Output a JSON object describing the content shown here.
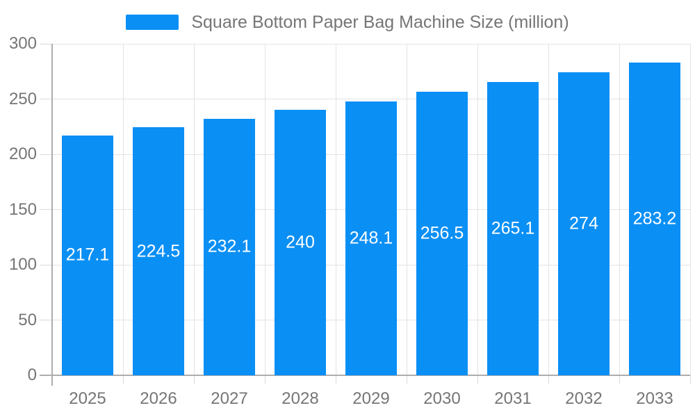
{
  "legend": {
    "label": "Square Bottom Paper Bag Machine Size (million)"
  },
  "chart_data": {
    "type": "bar",
    "title": "Square Bottom Paper Bag Machine Size (million)",
    "categories": [
      "2025",
      "2026",
      "2027",
      "2028",
      "2029",
      "2030",
      "2031",
      "2032",
      "2033"
    ],
    "values": [
      217.1,
      224.5,
      232.1,
      240,
      248.1,
      256.5,
      265.1,
      274,
      283.2
    ],
    "series": [
      {
        "name": "Square Bottom Paper Bag Machine Size (million)",
        "values": [
          217.1,
          224.5,
          232.1,
          240,
          248.1,
          256.5,
          265.1,
          274,
          283.2
        ]
      }
    ],
    "xlabel": "",
    "ylabel": "",
    "ylim": [
      0,
      300
    ],
    "yticks": [
      0,
      50,
      100,
      150,
      200,
      250,
      300
    ],
    "grid": true,
    "legend_position": "top",
    "value_labels_inside_bars": true,
    "colors": {
      "bar": "#0a8ff5",
      "bar_value_text": "#ffffff",
      "axis_label": "#757575",
      "legend_text": "#757575",
      "gridline": "#e3e3e3",
      "axis_line": "#adadad",
      "background": "#ffffff"
    }
  }
}
